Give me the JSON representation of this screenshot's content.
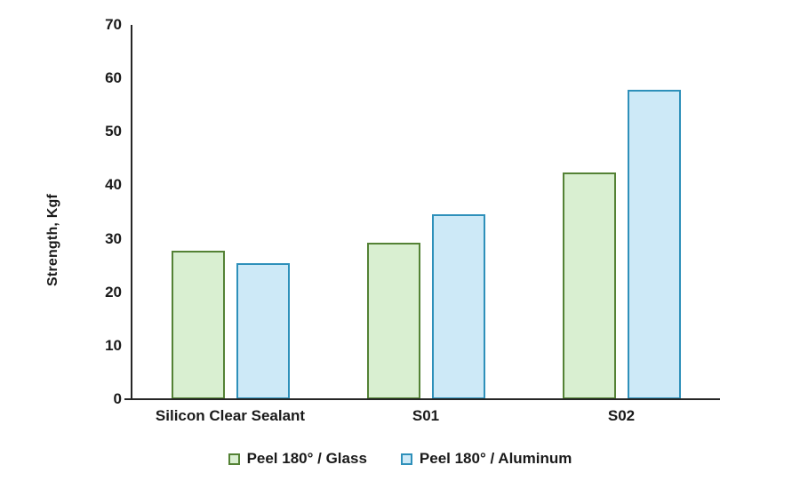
{
  "chart_data": {
    "type": "bar",
    "title": "",
    "xlabel": "",
    "ylabel": "Strength, Kgf",
    "ylim": [
      0,
      70
    ],
    "yticks": [
      0,
      10,
      20,
      30,
      40,
      50,
      60,
      70
    ],
    "grid": false,
    "legend_position": "bottom",
    "categories": [
      "Silicon Clear Sealant",
      "S01",
      "S02"
    ],
    "series": [
      {
        "name": "Peel 180° / Glass",
        "values": [
          27.7,
          29.3,
          42.4
        ],
        "fill_color": "#d9efd1",
        "border_color": "#548235"
      },
      {
        "name": "Peel 180° / Aluminum",
        "values": [
          25.4,
          34.6,
          57.8
        ],
        "fill_color": "#cde9f7",
        "border_color": "#2e90ba"
      }
    ]
  },
  "colors": {
    "axis": "#262626",
    "text": "#1a1a1a",
    "background": "#ffffff"
  }
}
